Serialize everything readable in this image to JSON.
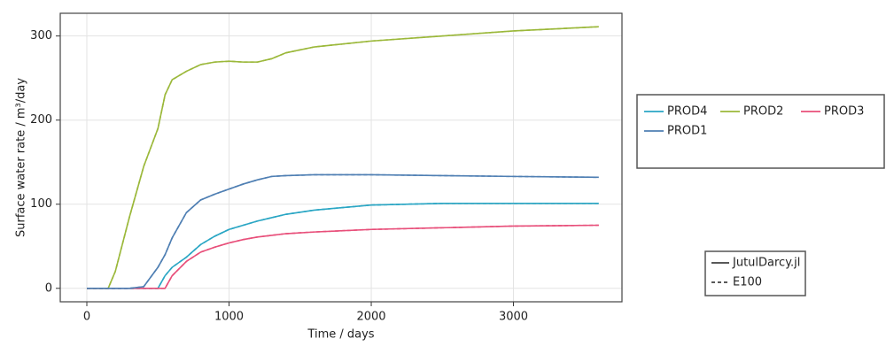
{
  "chart_data": {
    "type": "line",
    "xlabel": "Time / days",
    "ylabel": "Surface water rate / m³/day",
    "x": [
      0,
      150,
      200,
      300,
      400,
      500,
      550,
      600,
      700,
      800,
      900,
      1000,
      1100,
      1200,
      1300,
      1400,
      1600,
      2000,
      2500,
      3000,
      3600
    ],
    "series": [
      {
        "name": "PROD4",
        "color": "#2aa6c4",
        "lines": [
          [
            0,
            0,
            0,
            0,
            0,
            0,
            15,
            25,
            37,
            52,
            62,
            70,
            75,
            80,
            84,
            88,
            93,
            99,
            101,
            101,
            101
          ],
          [
            0,
            0,
            0,
            0,
            0,
            0,
            15,
            25,
            37,
            52,
            62,
            70,
            75,
            80,
            84,
            88,
            93,
            99,
            101,
            101,
            101
          ]
        ]
      },
      {
        "name": "PROD2",
        "color": "#9bb83a",
        "lines": [
          [
            0,
            0,
            20,
            85,
            145,
            190,
            230,
            248,
            258,
            266,
            269,
            270,
            269,
            269,
            273,
            280,
            287,
            294,
            300,
            306,
            311
          ],
          [
            0,
            0,
            20,
            85,
            145,
            190,
            230,
            248,
            258,
            266,
            269,
            270,
            269,
            269,
            273,
            280,
            287,
            294,
            300,
            306,
            311
          ]
        ]
      },
      {
        "name": "PROD3",
        "color": "#e84f7a",
        "lines": [
          [
            0,
            0,
            0,
            0,
            0,
            0,
            0,
            15,
            32,
            43,
            49,
            54,
            58,
            61,
            63,
            65,
            67,
            70,
            72,
            74,
            75
          ],
          [
            0,
            0,
            0,
            0,
            0,
            0,
            0,
            15,
            32,
            43,
            49,
            54,
            58,
            61,
            63,
            65,
            67,
            70,
            72,
            74,
            75
          ]
        ]
      },
      {
        "name": "PROD1",
        "color": "#4f7fb3",
        "lines": [
          [
            0,
            0,
            0,
            0,
            2,
            25,
            40,
            60,
            90,
            105,
            112,
            118,
            124,
            129,
            133,
            134,
            135,
            135,
            134,
            133,
            132
          ],
          [
            0,
            0,
            0,
            0,
            2,
            25,
            40,
            60,
            90,
            105,
            112,
            118,
            124,
            129,
            133,
            134,
            135,
            135,
            134,
            133,
            132
          ]
        ]
      }
    ],
    "styles": [
      {
        "name": "JutulDarcy.jl",
        "dashed": false
      },
      {
        "name": "E100",
        "dashed": true
      }
    ],
    "xlim": [
      -187,
      3763
    ],
    "xticks": [
      0,
      1000,
      2000,
      3000
    ],
    "ylim": [
      -16,
      327
    ],
    "yticks": [
      0,
      100,
      200,
      300
    ],
    "grid": true
  }
}
